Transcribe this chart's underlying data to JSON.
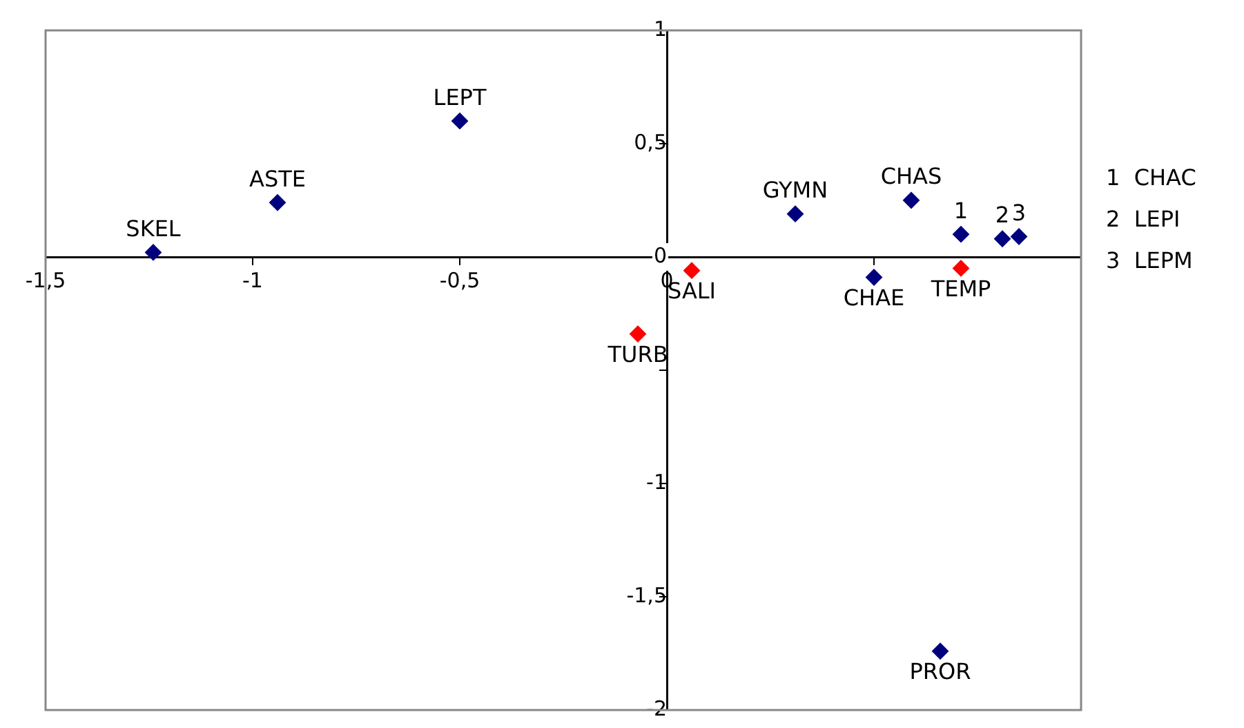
{
  "chart_data": {
    "type": "scatter",
    "grid": false,
    "legend": false,
    "marker": "diamond",
    "xlim": [
      -1.5,
      1
    ],
    "ylim": [
      -2,
      1
    ],
    "xticks": [
      {
        "value": -1.5,
        "label": "-1,5"
      },
      -1,
      {
        "value": -0.5,
        "label": "-0,5"
      },
      0,
      {
        "value": 0.5,
        "label": null
      },
      {
        "value": 1,
        "label": null
      }
    ],
    "yticks": [
      {
        "value": -2,
        "label": "-2"
      },
      {
        "value": -1.5,
        "label": "-1,5"
      },
      -1,
      {
        "value": -0.5,
        "label": null
      },
      0,
      {
        "value": 0.5,
        "label": "0,5"
      },
      1
    ],
    "series": [
      {
        "color": "#00007f",
        "x": [
          -1.24,
          -0.94,
          -0.5,
          0.31,
          0.59,
          0.71,
          0.81,
          0.85,
          0.5,
          0.66
        ],
        "values": [
          0.02,
          0.24,
          0.6,
          0.19,
          0.25,
          0.1,
          0.08,
          0.09,
          -0.09,
          -1.74
        ]
      },
      {
        "color": "#ff0000",
        "x": [
          0.71,
          0.06,
          -0.07
        ],
        "values": [
          -0.05,
          -0.06,
          -0.34
        ]
      }
    ],
    "annotations": [
      {
        "text": "SKEL",
        "x": -1.24,
        "y": 0.02
      },
      {
        "text": "ASTE",
        "x": -0.94,
        "y": 0.24
      },
      {
        "text": "LEPT",
        "x": -0.5,
        "y": 0.6
      },
      {
        "text": "GYMN",
        "x": 0.31,
        "y": 0.19
      },
      {
        "text": "CHAS",
        "x": 0.59,
        "y": 0.25
      },
      {
        "text": "1",
        "x": 0.71,
        "y": 0.1
      },
      {
        "text": "2",
        "x": 0.81,
        "y": 0.08
      },
      {
        "text": "3",
        "x": 0.85,
        "y": 0.09
      },
      {
        "text": "CHAE",
        "x": 0.5,
        "y": -0.09
      },
      {
        "text": "PROR",
        "x": 0.66,
        "y": -1.74
      },
      {
        "text": "TEMP",
        "x": 0.71,
        "y": -0.05
      },
      {
        "text": "SALI",
        "x": 0.06,
        "y": -0.06
      },
      {
        "text": "TURB",
        "x": -0.07,
        "y": -0.34
      },
      "1  CHAC",
      "2  LEPI",
      "3  LEPM"
    ]
  }
}
